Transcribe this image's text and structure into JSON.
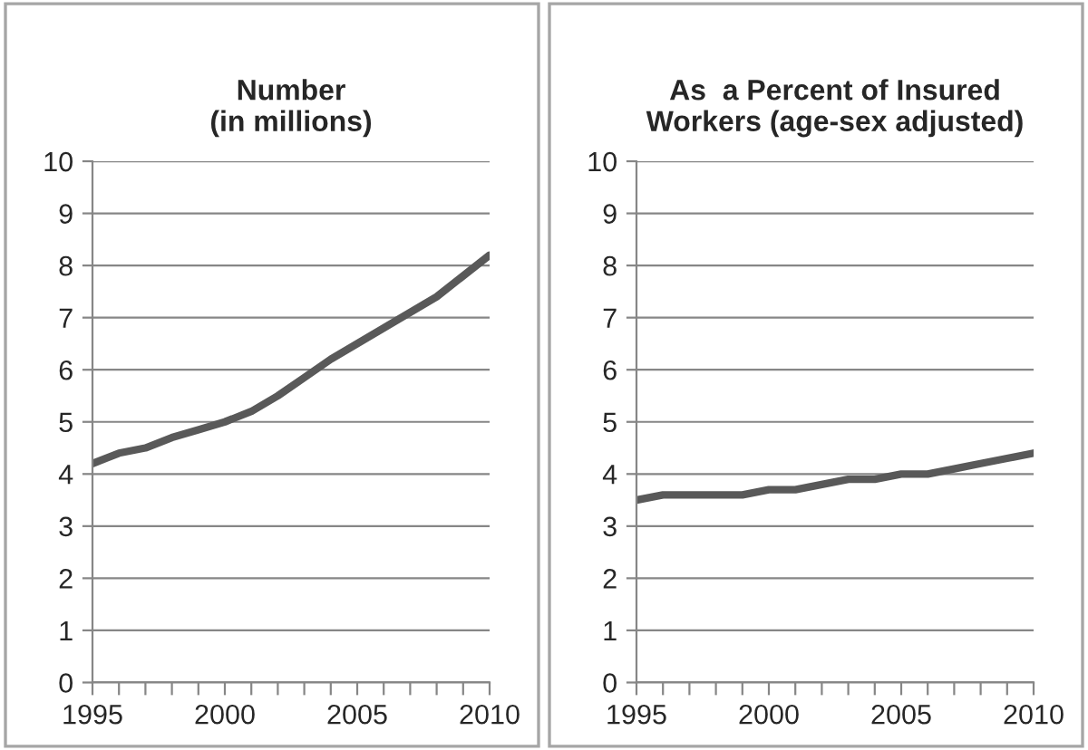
{
  "chart_data": [
    {
      "type": "line",
      "title": "Number\n(in millions)",
      "x": [
        1995,
        1996,
        1997,
        1998,
        1999,
        2000,
        2001,
        2002,
        2003,
        2004,
        2005,
        2006,
        2007,
        2008,
        2009,
        2010
      ],
      "series": [
        {
          "color": "#595959",
          "values": [
            4.2,
            4.4,
            4.5,
            4.7,
            4.85,
            5.0,
            5.2,
            5.5,
            5.85,
            6.2,
            6.5,
            6.8,
            7.1,
            7.4,
            7.8,
            8.2
          ]
        }
      ],
      "xlim": [
        1995,
        2010
      ],
      "xticks": [
        1995,
        {
          "value": 1996,
          "label": null
        },
        {
          "value": 1997,
          "label": null
        },
        {
          "value": 1998,
          "label": null
        },
        {
          "value": 1999,
          "label": null
        },
        2000,
        {
          "value": 2001,
          "label": null
        },
        {
          "value": 2002,
          "label": null
        },
        {
          "value": 2003,
          "label": null
        },
        {
          "value": 2004,
          "label": null
        },
        2005,
        {
          "value": 2006,
          "label": null
        },
        {
          "value": 2007,
          "label": null
        },
        {
          "value": 2008,
          "label": null
        },
        {
          "value": 2009,
          "label": null
        },
        2010
      ],
      "ylim": [
        0,
        10
      ],
      "yticks": [
        0,
        1,
        2,
        3,
        4,
        5,
        6,
        7,
        8,
        9,
        10
      ],
      "grid": "y",
      "marker": "none",
      "line_style": "solid"
    },
    {
      "type": "line",
      "title": "As  a Percent of Insured\nWorkers (age-sex adjusted)",
      "x": [
        1995,
        1996,
        1997,
        1998,
        1999,
        2000,
        2001,
        2002,
        2003,
        2004,
        2005,
        2006,
        2007,
        2008,
        2009,
        2010
      ],
      "series": [
        {
          "color": "#595959",
          "values": [
            3.5,
            3.6,
            3.6,
            3.6,
            3.6,
            3.7,
            3.7,
            3.8,
            3.9,
            3.9,
            4.0,
            4.0,
            4.1,
            4.2,
            4.3,
            4.4
          ]
        }
      ],
      "xlim": [
        1995,
        2010
      ],
      "xticks": [
        1995,
        {
          "value": 1996,
          "label": null
        },
        {
          "value": 1997,
          "label": null
        },
        {
          "value": 1998,
          "label": null
        },
        {
          "value": 1999,
          "label": null
        },
        2000,
        {
          "value": 2001,
          "label": null
        },
        {
          "value": 2002,
          "label": null
        },
        {
          "value": 2003,
          "label": null
        },
        {
          "value": 2004,
          "label": null
        },
        2005,
        {
          "value": 2006,
          "label": null
        },
        {
          "value": 2007,
          "label": null
        },
        {
          "value": 2008,
          "label": null
        },
        {
          "value": 2009,
          "label": null
        },
        2010
      ],
      "ylim": [
        0,
        10
      ],
      "yticks": [
        0,
        1,
        2,
        3,
        4,
        5,
        6,
        7,
        8,
        9,
        10
      ],
      "grid": "y",
      "marker": "none",
      "line_style": "solid"
    }
  ]
}
